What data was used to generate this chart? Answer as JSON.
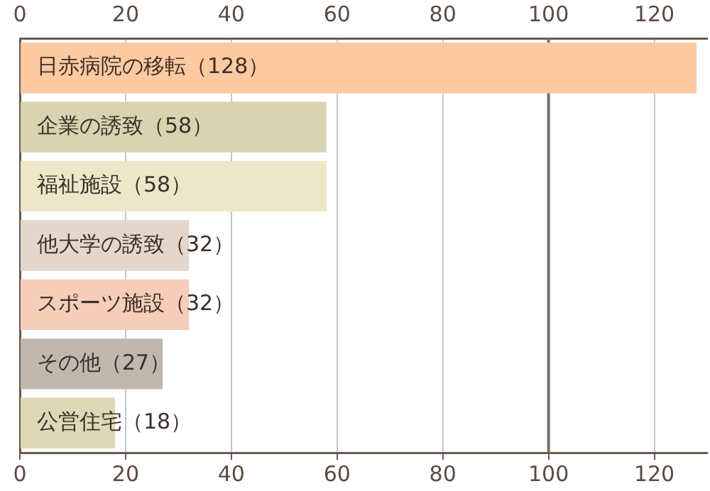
{
  "chart_data": {
    "type": "bar",
    "orientation": "horizontal",
    "categories": [
      "日赤病院の移転（128）",
      "企業の誘致（58）",
      "福祉施設（58）",
      "他大学の誘致（32）",
      "スポーツ施設（32）",
      "その他（27）",
      "公営住宅（18）"
    ],
    "values": [
      128,
      58,
      58,
      32,
      32,
      27,
      18
    ],
    "colors": [
      "#fdc9a0",
      "#d8d3b0",
      "#ede6c8",
      "#e3d6ca",
      "#f5cdb9",
      "#c0b8ac",
      "#ddd8b5"
    ],
    "xlim": [
      0,
      130
    ],
    "xticks": [
      0,
      20,
      40,
      60,
      80,
      100,
      120
    ],
    "x2lim": [
      0,
      130
    ],
    "x2ticks": [
      0,
      20,
      40,
      60,
      80,
      100,
      120
    ],
    "grid": "x",
    "ref_lines": [
      {
        "axis": "x",
        "value": 100,
        "color": "#7a6c64"
      }
    ]
  }
}
